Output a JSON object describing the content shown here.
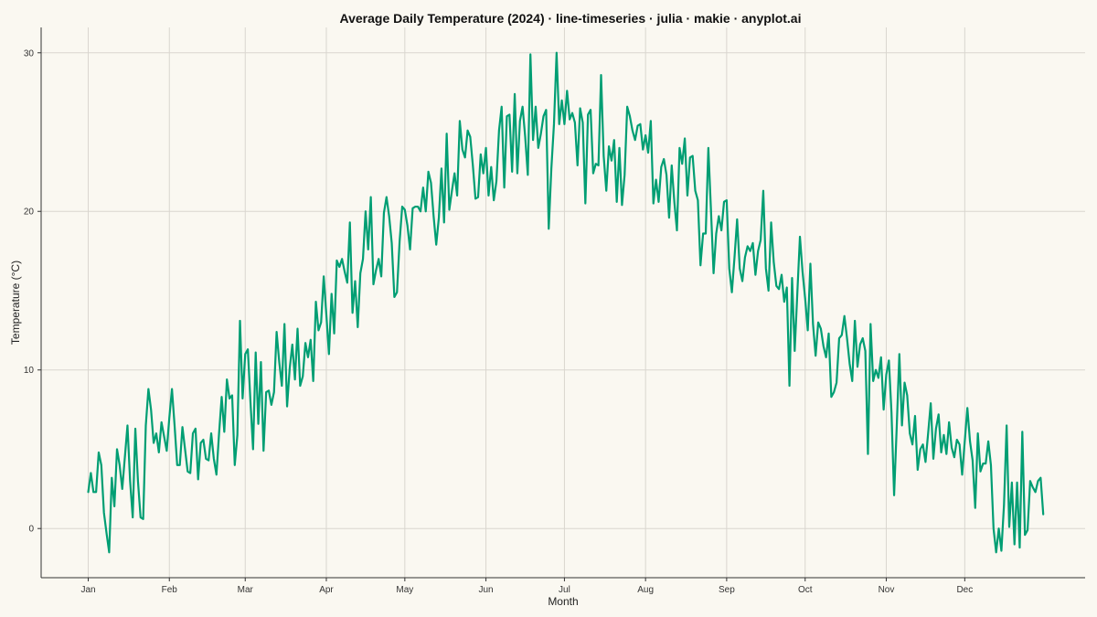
{
  "chart_data": {
    "type": "line",
    "title": "Average Daily Temperature (2024) · line-timeseries · julia · makie · anyplot.ai",
    "xlabel": "Month",
    "ylabel": "Temperature (°C)",
    "x_ticks": [
      "Jan",
      "Feb",
      "Mar",
      "Apr",
      "May",
      "Jun",
      "Jul",
      "Aug",
      "Sep",
      "Oct",
      "Nov",
      "Dec"
    ],
    "y_ticks": [
      0,
      10,
      20,
      30
    ],
    "ylim": [
      -3.1,
      31.6
    ],
    "xlim": [
      "2023-12-14",
      "2025-01-16"
    ],
    "grid": true,
    "color": "#009E73",
    "series": [
      {
        "x_start": "2024-01-01",
        "frequency": "daily",
        "values": [
          2.3,
          3.5,
          2.3,
          2.3,
          4.8,
          4.0,
          1.0,
          -0.3,
          -1.5,
          3.2,
          1.4,
          5.0,
          4.0,
          2.5,
          4.5,
          6.5,
          3.0,
          0.7,
          6.3,
          3.0,
          0.7,
          0.6,
          6.5,
          8.8,
          7.5,
          5.4,
          6.0,
          4.8,
          6.7,
          5.8,
          4.9,
          7.0,
          8.8,
          6.5,
          4.0,
          4.0,
          6.4,
          5.0,
          3.6,
          3.5,
          6.0,
          6.3,
          3.1,
          5.4,
          5.6,
          4.4,
          4.3,
          6.0,
          4.4,
          3.4,
          6.0,
          8.3,
          6.1,
          9.4,
          8.2,
          8.4,
          4.0,
          5.9,
          13.1,
          8.2,
          11.0,
          11.3,
          8.0,
          5.0,
          11.1,
          6.6,
          10.5,
          4.9,
          8.6,
          8.7,
          7.8,
          8.6,
          12.4,
          10.5,
          9.0,
          12.9,
          7.7,
          10.1,
          11.6,
          9.4,
          12.6,
          9.0,
          9.6,
          11.7,
          10.8,
          11.9,
          9.3,
          14.3,
          12.5,
          13.0,
          15.9,
          13.5,
          11.0,
          14.8,
          12.3,
          16.9,
          16.5,
          17.0,
          16.2,
          15.5,
          19.3,
          13.6,
          15.6,
          12.7,
          16.1,
          17.0,
          20.0,
          17.6,
          20.9,
          15.4,
          16.3,
          17.0,
          15.9,
          19.9,
          20.9,
          19.7,
          18.0,
          14.6,
          14.9,
          18.1,
          20.3,
          20.1,
          19.1,
          17.6,
          20.2,
          20.3,
          20.3,
          20.0,
          21.5,
          20.0,
          22.5,
          21.8,
          19.7,
          17.9,
          19.6,
          22.7,
          19.3,
          24.9,
          20.1,
          21.3,
          22.4,
          21.0,
          25.7,
          23.9,
          23.4,
          25.1,
          24.7,
          22.9,
          20.8,
          20.9,
          23.6,
          22.4,
          24.0,
          21.0,
          22.8,
          20.7,
          21.9,
          25.1,
          26.6,
          21.5,
          26.0,
          26.1,
          22.5,
          27.4,
          22.4,
          25.7,
          26.6,
          24.7,
          22.3,
          29.9,
          24.5,
          26.6,
          24.0,
          24.9,
          26.0,
          26.4,
          18.9,
          22.7,
          25.5,
          30.0,
          25.5,
          27.0,
          25.5,
          27.6,
          25.8,
          26.2,
          25.6,
          22.9,
          26.5,
          25.6,
          20.5,
          26.1,
          26.4,
          22.4,
          23.0,
          22.9,
          28.6,
          23.5,
          21.3,
          24.1,
          23.2,
          24.5,
          20.6,
          24.0,
          20.4,
          22.3,
          26.6,
          26.0,
          25.1,
          24.5,
          25.4,
          25.5,
          23.9,
          24.8,
          23.7,
          25.7,
          20.5,
          22.0,
          20.6,
          22.8,
          23.3,
          22.3,
          19.6,
          22.9,
          20.6,
          18.8,
          24.0,
          23.0,
          24.6,
          21.0,
          23.4,
          23.5,
          21.3,
          20.7,
          16.6,
          18.6,
          18.6,
          24.0,
          20.1,
          16.1,
          18.6,
          19.7,
          18.8,
          20.6,
          20.7,
          16.4,
          14.9,
          17.1,
          19.5,
          16.4,
          15.6,
          17.1,
          17.8,
          17.5,
          18.0,
          16.0,
          17.5,
          18.2,
          21.3,
          16.4,
          15.0,
          19.3,
          16.8,
          15.3,
          15.1,
          16.0,
          14.3,
          15.2,
          9.0,
          15.8,
          11.2,
          14.8,
          18.4,
          16.2,
          14.5,
          12.5,
          16.7,
          12.9,
          10.9,
          13.0,
          12.6,
          11.5,
          10.8,
          12.3,
          8.3,
          8.6,
          9.2,
          12.0,
          12.2,
          13.4,
          12.0,
          10.4,
          9.3,
          13.1,
          10.2,
          11.6,
          12.0,
          11.2,
          4.7,
          12.9,
          9.3,
          10.0,
          9.5,
          10.8,
          7.5,
          9.7,
          10.6,
          7.3,
          2.1,
          6.4,
          11.0,
          6.5,
          9.2,
          8.4,
          6.0,
          5.3,
          7.1,
          3.7,
          5.0,
          5.3,
          4.2,
          6.0,
          7.9,
          4.4,
          6.3,
          7.2,
          4.8,
          5.9,
          4.7,
          6.7,
          5.1,
          4.5,
          5.6,
          5.3,
          3.4,
          5.5,
          7.6,
          5.5,
          4.3,
          1.3,
          6.0,
          3.6,
          4.1,
          4.1,
          5.5,
          4.0,
          0.0,
          -1.5,
          0.0,
          -1.4,
          1.5,
          6.5,
          0.1,
          2.9,
          -1.0,
          2.9,
          -1.2,
          6.1,
          -0.4,
          -0.1,
          3.0,
          2.6,
          2.3,
          3.0,
          3.2,
          0.9
        ]
      }
    ]
  }
}
